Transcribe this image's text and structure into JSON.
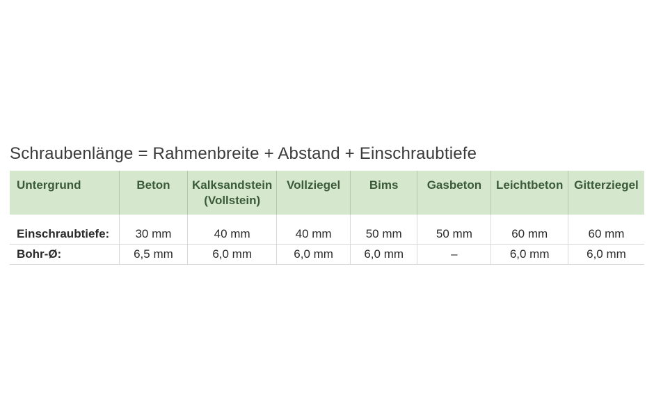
{
  "title": "Schraubenlänge = Rahmenbreite + Abstand + Einschraubtiefe",
  "table": {
    "type": "table",
    "header_bg_color": "#d5e7cc",
    "header_text_color": "#3a5a3a",
    "cell_border_color": "#d8d8d8",
    "header_border_color": "#b8c8b0",
    "body_text_color": "#2a2a2a",
    "font_size_body": 17,
    "font_size_title": 24,
    "columns": [
      {
        "label": "Untergrund",
        "sub": ""
      },
      {
        "label": "Beton",
        "sub": ""
      },
      {
        "label": "Kalksandstein",
        "sub": "(Vollstein)"
      },
      {
        "label": "Vollziegel",
        "sub": ""
      },
      {
        "label": "Bims",
        "sub": ""
      },
      {
        "label": "Gasbeton",
        "sub": ""
      },
      {
        "label": "Leichtbeton",
        "sub": ""
      },
      {
        "label": "Gitterziegel",
        "sub": ""
      }
    ],
    "rows": [
      {
        "label": "Einschraubtiefe:",
        "values": [
          "30 mm",
          "40 mm",
          "40 mm",
          "50 mm",
          "50 mm",
          "60 mm",
          "60 mm"
        ]
      },
      {
        "label": "Bohr-Ø:",
        "values": [
          "6,5 mm",
          "6,0 mm",
          "6,0 mm",
          "6,0 mm",
          "–",
          "6,0 mm",
          "6,0 mm"
        ]
      }
    ]
  }
}
